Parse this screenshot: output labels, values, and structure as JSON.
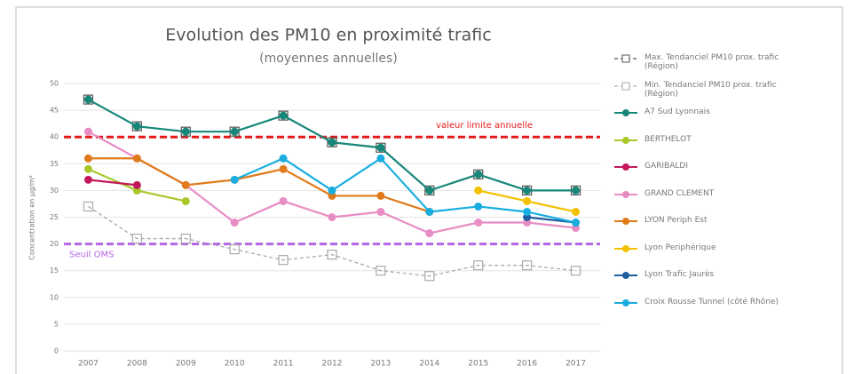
{
  "chart_data": {
    "type": "line",
    "title": "Evolution des PM10 en proximité trafic",
    "subtitle": "(moyennes annuelles)",
    "y_label": "Concentration en µg/m³",
    "categories": [
      "2007",
      "2008",
      "2009",
      "2010",
      "2011",
      "2012",
      "2013",
      "2014",
      "2015",
      "2016",
      "2017"
    ],
    "ylim": [
      0,
      50
    ],
    "yticks": [
      0,
      5,
      10,
      15,
      20,
      25,
      30,
      35,
      40,
      45,
      50
    ],
    "grid": true,
    "legend": "right",
    "reference_lines": [
      {
        "value": 40,
        "label": "valeur limite annuelle",
        "color": "#e31a1c"
      },
      {
        "value": 20,
        "label": "Seuil OMS",
        "color": "#b266e6"
      }
    ],
    "series": [
      {
        "name": "Max. Tendanciel PM10 prox. trafic (Région)",
        "color": "#555555",
        "dashed": true,
        "marker": "square",
        "values": [
          47,
          42,
          41,
          41,
          44,
          39,
          38,
          30,
          33,
          30,
          30
        ]
      },
      {
        "name": "Min. Tendanciel PM10 prox. trafic (Région)",
        "color": "#aaaaaa",
        "dashed": true,
        "marker": "square",
        "values": [
          27,
          21,
          21,
          19,
          17,
          18,
          15,
          14,
          16,
          16,
          15
        ]
      },
      {
        "name": "A7 Sud Lyonnais",
        "color": "#17877a",
        "values": [
          47,
          42,
          41,
          41,
          44,
          39,
          38,
          30,
          33,
          30,
          30
        ]
      },
      {
        "name": "BERTHELOT",
        "color": "#a8c82a",
        "values": [
          34,
          30,
          28,
          null,
          null,
          null,
          null,
          null,
          null,
          null,
          null
        ]
      },
      {
        "name": "GARIBALDI",
        "color": "#c2185b",
        "values": [
          32,
          31,
          null,
          null,
          null,
          null,
          null,
          null,
          null,
          null,
          null
        ]
      },
      {
        "name": "GRAND CLEMENT",
        "color": "#e88cc4",
        "values": [
          41,
          36,
          31,
          24,
          28,
          25,
          26,
          22,
          24,
          24,
          23
        ]
      },
      {
        "name": "LYON Periph Est",
        "color": "#e07b1a",
        "values": [
          36,
          36,
          31,
          32,
          34,
          29,
          29,
          26,
          null,
          null,
          null
        ]
      },
      {
        "name": "Lyon Periphérique",
        "color": "#f2c100",
        "values": [
          null,
          null,
          null,
          null,
          null,
          null,
          null,
          null,
          30,
          28,
          26
        ]
      },
      {
        "name": "Lyon Trafic Jaurès",
        "color": "#1f5f9f",
        "values": [
          null,
          null,
          null,
          null,
          null,
          null,
          null,
          null,
          null,
          25,
          24
        ]
      },
      {
        "name": "Croix Rousse Tunnel (côté Rhône)",
        "color": "#1aaee0",
        "values": [
          null,
          null,
          null,
          32,
          36,
          30,
          36,
          26,
          27,
          26,
          24
        ]
      }
    ]
  }
}
